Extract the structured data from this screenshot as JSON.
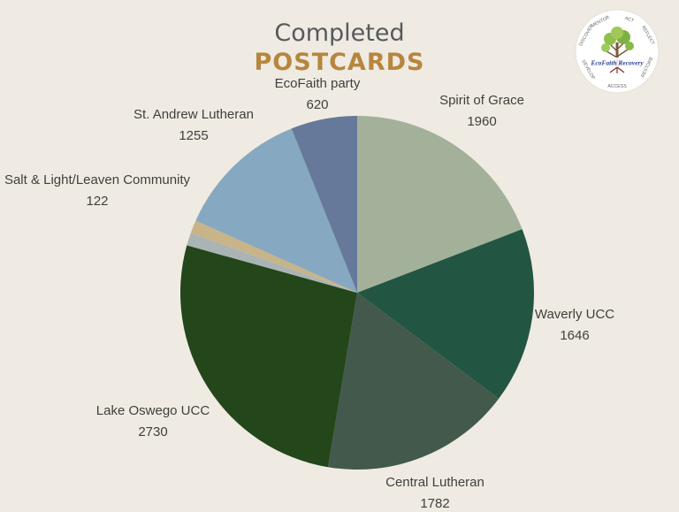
{
  "title": {
    "line1": "Completed",
    "line2": "POSTCARDS"
  },
  "logo": {
    "words": [
      "MENTOR",
      "ACT",
      "REFLECT",
      "RESTORE",
      "ACCESS",
      "DEVELOP",
      "DISCOVER"
    ],
    "banner": "EcoFaith Recovery"
  },
  "chart_data": {
    "type": "pie",
    "title": "Completed POSTCARDS",
    "slices": [
      {
        "label": "Spirit of Grace",
        "value": 1960,
        "color": "#a3b19b"
      },
      {
        "label": "Waverly UCC",
        "value": 1646,
        "color": "#235642"
      },
      {
        "label": "Central Lutheran",
        "value": 1782,
        "color": "#42594c"
      },
      {
        "label": "Lake Oswego UCC",
        "value": 2730,
        "color": "#23461b"
      },
      {
        "label": "",
        "value": 120,
        "color": "#aab4b4"
      },
      {
        "label": "Salt & Light/Leaven Community",
        "value": 122,
        "color": "#c8b488"
      },
      {
        "label": "St. Andrew Lutheran",
        "value": 1255,
        "color": "#86a8c0"
      },
      {
        "label": "EcoFaith party",
        "value": 620,
        "color": "#66799a"
      }
    ],
    "start_angle_deg": 0,
    "direction": "clockwise",
    "data_labels": "outside",
    "legend": "none"
  }
}
